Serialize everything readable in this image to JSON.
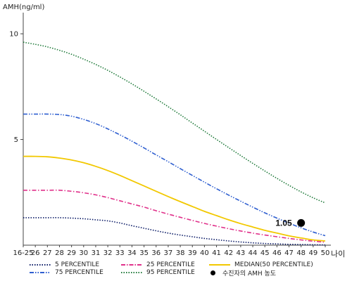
{
  "chart_data": {
    "type": "line",
    "ylabel": "AMH(ng/ml)",
    "xunit_label": "나이",
    "y_ticks": [
      "10",
      "5"
    ],
    "ylim": [
      0,
      11
    ],
    "x": [
      "16-25",
      "26",
      "27",
      "28",
      "29",
      "30",
      "31",
      "32",
      "33",
      "34",
      "35",
      "36",
      "37",
      "38",
      "39",
      "40",
      "41",
      "42",
      "43",
      "44",
      "45",
      "46",
      "47",
      "48",
      "49",
      "50"
    ],
    "series": [
      {
        "name": "5 PERCENTILE",
        "color": "#0a1a66",
        "dash": "dot",
        "values": [
          1.3,
          1.3,
          1.3,
          1.3,
          1.28,
          1.25,
          1.2,
          1.15,
          1.05,
          0.92,
          0.8,
          0.68,
          0.57,
          0.48,
          0.4,
          0.32,
          0.26,
          0.2,
          0.15,
          0.11,
          0.08,
          0.06,
          0.04,
          0.03,
          0.02,
          0.01
        ]
      },
      {
        "name": "25 PERCENTILE",
        "color": "#e0308a",
        "dash": "dashdot",
        "values": [
          2.6,
          2.6,
          2.6,
          2.6,
          2.55,
          2.48,
          2.38,
          2.25,
          2.1,
          1.95,
          1.8,
          1.63,
          1.47,
          1.32,
          1.17,
          1.03,
          0.9,
          0.78,
          0.67,
          0.57,
          0.48,
          0.4,
          0.32,
          0.25,
          0.19,
          0.14
        ]
      },
      {
        "name": "MEDIAN(50 PERCENTILE)",
        "color": "#f2c800",
        "dash": "solid",
        "values": [
          4.2,
          4.2,
          4.18,
          4.12,
          4.03,
          3.9,
          3.73,
          3.53,
          3.3,
          3.05,
          2.8,
          2.55,
          2.3,
          2.06,
          1.83,
          1.6,
          1.4,
          1.2,
          1.02,
          0.86,
          0.7,
          0.57,
          0.44,
          0.34,
          0.25,
          0.2
        ]
      },
      {
        "name": "75 PERCENTILE",
        "color": "#2f5fd0",
        "dash": "dashdotdot",
        "values": [
          6.2,
          6.2,
          6.2,
          6.18,
          6.1,
          5.95,
          5.75,
          5.5,
          5.22,
          4.92,
          4.6,
          4.27,
          3.95,
          3.62,
          3.3,
          2.98,
          2.67,
          2.37,
          2.08,
          1.8,
          1.53,
          1.28,
          1.04,
          0.82,
          0.62,
          0.45
        ]
      },
      {
        "name": "95 PERCENTILE",
        "color": "#1f7a3a",
        "dash": "dot",
        "values": [
          9.6,
          9.5,
          9.38,
          9.22,
          9.03,
          8.8,
          8.55,
          8.27,
          7.96,
          7.63,
          7.28,
          6.92,
          6.55,
          6.17,
          5.78,
          5.39,
          5.0,
          4.62,
          4.24,
          3.87,
          3.51,
          3.16,
          2.83,
          2.52,
          2.24,
          2.0
        ]
      }
    ],
    "patient": {
      "name": "수진자의 AMH 농도",
      "x": "48",
      "value": 1.05,
      "label": "1.05",
      "color": "#000000"
    },
    "grid": false
  }
}
